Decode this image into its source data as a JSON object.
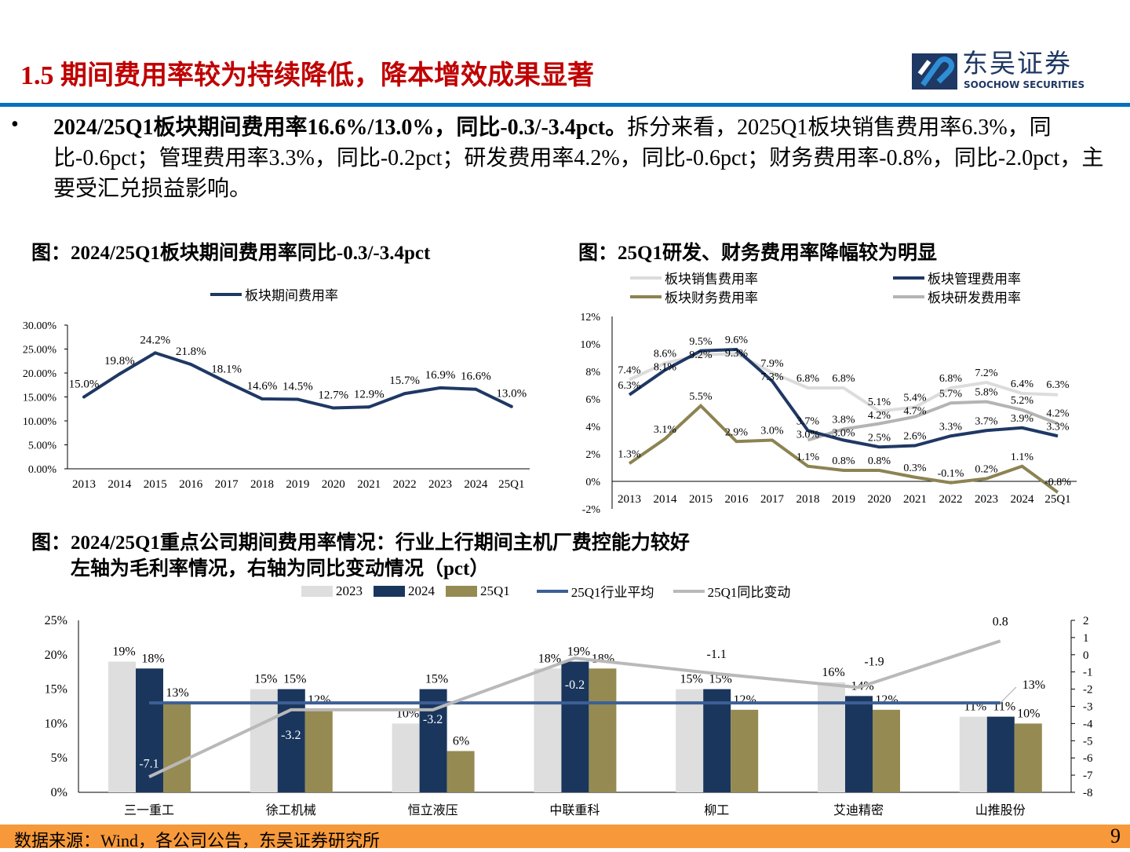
{
  "header": {
    "title": "1.5 期间费用率较为持续降低，降本增效成果显著",
    "logo_cn": "东吴证券",
    "logo_en": "SOOCHOW SECURITIES",
    "brand_color": "#0070c0",
    "title_color": "#c00000"
  },
  "bullet": {
    "marker": "•",
    "bold": "2024/25Q1板块期间费用率16.6%/13.0%，同比-0.3/-3.4pct。",
    "text": "拆分来看，2025Q1板块销售费用率6.3%，同比-0.6pct；管理费用率3.3%，同比-0.2pct；研发费用率4.2%，同比-0.6pct；财务费用率-0.8%，同比-2.0pct，主要受汇兑损益影响。"
  },
  "footer": {
    "source": "数据来源：Wind，各公司公告，东吴证券研究所",
    "page": "9"
  },
  "chart_data": [
    {
      "title": "图：2024/25Q1板块期间费用率同比-0.3/-3.4pct",
      "type": "line",
      "categories": [
        "2013",
        "2014",
        "2015",
        "2016",
        "2017",
        "2018",
        "2019",
        "2020",
        "2021",
        "2022",
        "2023",
        "2024",
        "25Q1"
      ],
      "series": [
        {
          "name": "板块期间费用率",
          "color": "#1f3864",
          "values": [
            15.0,
            19.8,
            24.2,
            21.8,
            18.1,
            14.6,
            14.5,
            12.7,
            12.9,
            15.7,
            16.9,
            16.6,
            13.0
          ]
        }
      ],
      "yticks": [
        "30.00%",
        "25.00%",
        "20.00%",
        "15.00%",
        "10.00%",
        "5.00%",
        "0.00%"
      ],
      "ylim": [
        0,
        30
      ],
      "legend": "top"
    },
    {
      "title": "图：25Q1研发、财务费用率降幅较为明显",
      "type": "line",
      "categories": [
        "2013",
        "2014",
        "2015",
        "2016",
        "2017",
        "2018",
        "2019",
        "2020",
        "2021",
        "2022",
        "2023",
        "2024",
        "25Q1"
      ],
      "series": [
        {
          "name": "板块销售费用率",
          "color": "#dcdcdc",
          "values": [
            7.4,
            8.6,
            9.2,
            9.3,
            7.9,
            6.8,
            6.8,
            5.1,
            5.4,
            6.8,
            7.2,
            6.4,
            6.3
          ]
        },
        {
          "name": "板块管理费用率",
          "color": "#1f3864",
          "values": [
            6.3,
            8.1,
            9.5,
            9.6,
            7.3,
            3.7,
            3.0,
            2.5,
            2.6,
            3.3,
            3.7,
            3.9,
            3.3
          ]
        },
        {
          "name": "板块财务费用率",
          "color": "#8c8352",
          "values": [
            1.3,
            3.1,
            5.5,
            2.9,
            3.0,
            1.1,
            0.8,
            0.8,
            0.3,
            -0.1,
            0.2,
            1.1,
            -0.8
          ]
        },
        {
          "name": "板块研发费用率",
          "color": "#b4b4b4",
          "values": [
            null,
            null,
            null,
            null,
            null,
            3.0,
            3.8,
            4.2,
            4.7,
            5.7,
            5.8,
            5.2,
            4.2
          ]
        }
      ],
      "yticks": [
        "12%",
        "10%",
        "8%",
        "6%",
        "4%",
        "2%",
        "0%",
        "-2%"
      ],
      "ylim": [
        -2,
        12
      ],
      "legend": "top"
    },
    {
      "title": "图：2024/25Q1重点公司期间费用率情况：行业上行期间主机厂费控能力较好",
      "subtitle": "左轴为毛利率情况，右轴为同比变动情况（pct）",
      "type": "bar",
      "categories": [
        "三一重工",
        "徐工机械",
        "恒立液压",
        "中联重科",
        "柳工",
        "艾迪精密",
        "山推股份"
      ],
      "series": [
        {
          "name": "2023",
          "color": "#dedede",
          "values": [
            19,
            15,
            10,
            18,
            15,
            16,
            11
          ]
        },
        {
          "name": "2024",
          "color": "#1a365d",
          "values": [
            18,
            15,
            15,
            19,
            15,
            14,
            11
          ]
        },
        {
          "name": "25Q1",
          "color": "#958b52",
          "values": [
            13,
            12,
            6,
            18,
            12,
            12,
            10
          ]
        }
      ],
      "lines": [
        {
          "name": "25Q1行业平均",
          "color": "#3c5f96",
          "axis": "left",
          "value": 13,
          "label": "13%"
        },
        {
          "name": "25Q1同比变动",
          "color": "#b9b9b9",
          "axis": "right",
          "values": [
            -7.1,
            -3.2,
            -3.2,
            -0.2,
            -1.1,
            -1.9,
            0.8
          ]
        }
      ],
      "yticks_left": [
        "25%",
        "20%",
        "15%",
        "10%",
        "5%",
        "0%"
      ],
      "ylim_left": [
        0,
        25
      ],
      "yticks_right": [
        "2",
        "1",
        "0",
        "-1",
        "-2",
        "-3",
        "-4",
        "-5",
        "-6",
        "-7",
        "-8"
      ],
      "ylim_right": [
        -8,
        2
      ],
      "legend": "top"
    }
  ]
}
